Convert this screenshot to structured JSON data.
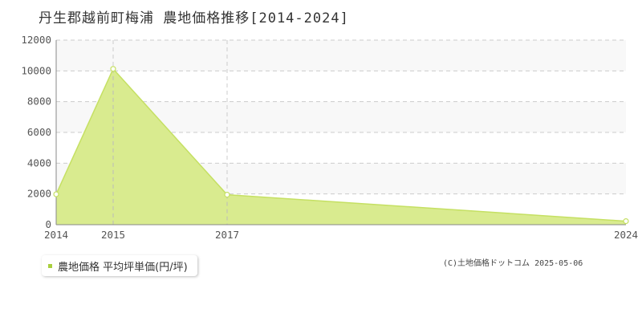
{
  "chart_data": {
    "type": "area",
    "title": "丹生郡越前町梅浦 農地価格推移[2014-2024]",
    "x": [
      2014,
      2015,
      2017,
      2024
    ],
    "series": [
      {
        "name": "農地価格 平均坪単価(円/坪)",
        "values": [
          1980,
          10130,
          1950,
          230
        ]
      }
    ],
    "ylim": [
      0,
      12000
    ],
    "yticks": [
      0,
      2000,
      4000,
      6000,
      8000,
      10000,
      12000
    ],
    "xticks": [
      "2014",
      "2015",
      "2017",
      "2024"
    ],
    "grid": true,
    "legend_position": "bottom-left",
    "colors": {
      "fill": "#d9eb8f",
      "line": "#c5e063",
      "marker": "#c5e063",
      "band": "#f8f8f8",
      "grid": "#cccccc"
    }
  },
  "copyright": "(C)土地価格ドットコム 2025-05-06"
}
